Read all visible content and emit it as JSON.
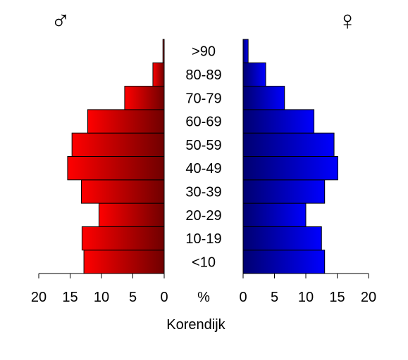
{
  "chart_data": {
    "type": "bar",
    "subtype": "population-pyramid",
    "title": "",
    "xlabel": "Korendijk",
    "unit_label": "%",
    "xlim": [
      0,
      20
    ],
    "ticks": [
      "20",
      "15",
      "10",
      "5",
      "0",
      "0",
      "5",
      "10",
      "15",
      "20"
    ],
    "male_symbol": "♂",
    "female_symbol": "♀",
    "categories": [
      "<10",
      "10-19",
      "20-29",
      "30-39",
      "40-49",
      "50-59",
      "60-69",
      "70-79",
      "80-89",
      ">90"
    ],
    "series": [
      {
        "key": "male",
        "values": [
          12.8,
          13.1,
          10.4,
          13.2,
          15.4,
          14.7,
          12.2,
          6.3,
          1.8,
          0.2
        ]
      },
      {
        "key": "female",
        "values": [
          13.0,
          12.5,
          10.0,
          13.0,
          15.1,
          14.5,
          11.3,
          6.6,
          3.6,
          0.8
        ]
      }
    ],
    "colors": {
      "male_light": "#ff0000",
      "male_dark": "#700000",
      "female_light": "#0000ff",
      "female_dark": "#000070"
    },
    "grid": false
  }
}
